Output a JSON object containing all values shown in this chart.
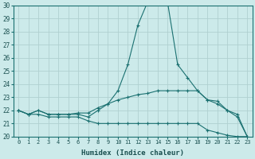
{
  "xlabel": "Humidex (Indice chaleur)",
  "background_color": "#cceaea",
  "grid_color": "#b0d0d0",
  "line_color": "#1a7070",
  "x": [
    0,
    1,
    2,
    3,
    4,
    5,
    6,
    7,
    8,
    9,
    10,
    11,
    12,
    13,
    14,
    15,
    16,
    17,
    18,
    19,
    20,
    21,
    22,
    23
  ],
  "y_max": [
    22.0,
    21.7,
    22.0,
    21.7,
    21.7,
    21.7,
    21.7,
    21.5,
    22.0,
    22.5,
    23.5,
    25.5,
    28.5,
    30.3,
    30.5,
    30.2,
    25.5,
    24.5,
    23.5,
    22.8,
    22.5,
    22.0,
    21.7,
    20.0
  ],
  "y_mean": [
    22.0,
    21.7,
    22.0,
    21.7,
    21.7,
    21.7,
    21.8,
    21.8,
    22.2,
    22.5,
    22.8,
    23.0,
    23.2,
    23.3,
    23.5,
    23.5,
    23.5,
    23.5,
    23.5,
    22.8,
    22.7,
    22.0,
    21.5,
    20.0
  ],
  "y_min": [
    22.0,
    21.7,
    21.7,
    21.5,
    21.5,
    21.5,
    21.5,
    21.2,
    21.0,
    21.0,
    21.0,
    21.0,
    21.0,
    21.0,
    21.0,
    21.0,
    21.0,
    21.0,
    21.0,
    20.5,
    20.3,
    20.1,
    20.0,
    20.0
  ],
  "ylim": [
    20,
    30
  ],
  "yticks": [
    20,
    21,
    22,
    23,
    24,
    25,
    26,
    27,
    28,
    29,
    30
  ],
  "xlim_min": -0.5,
  "xlim_max": 23.5,
  "xticks": [
    0,
    1,
    2,
    3,
    4,
    5,
    6,
    7,
    8,
    9,
    10,
    11,
    12,
    13,
    14,
    15,
    16,
    17,
    18,
    19,
    20,
    21,
    22,
    23
  ]
}
